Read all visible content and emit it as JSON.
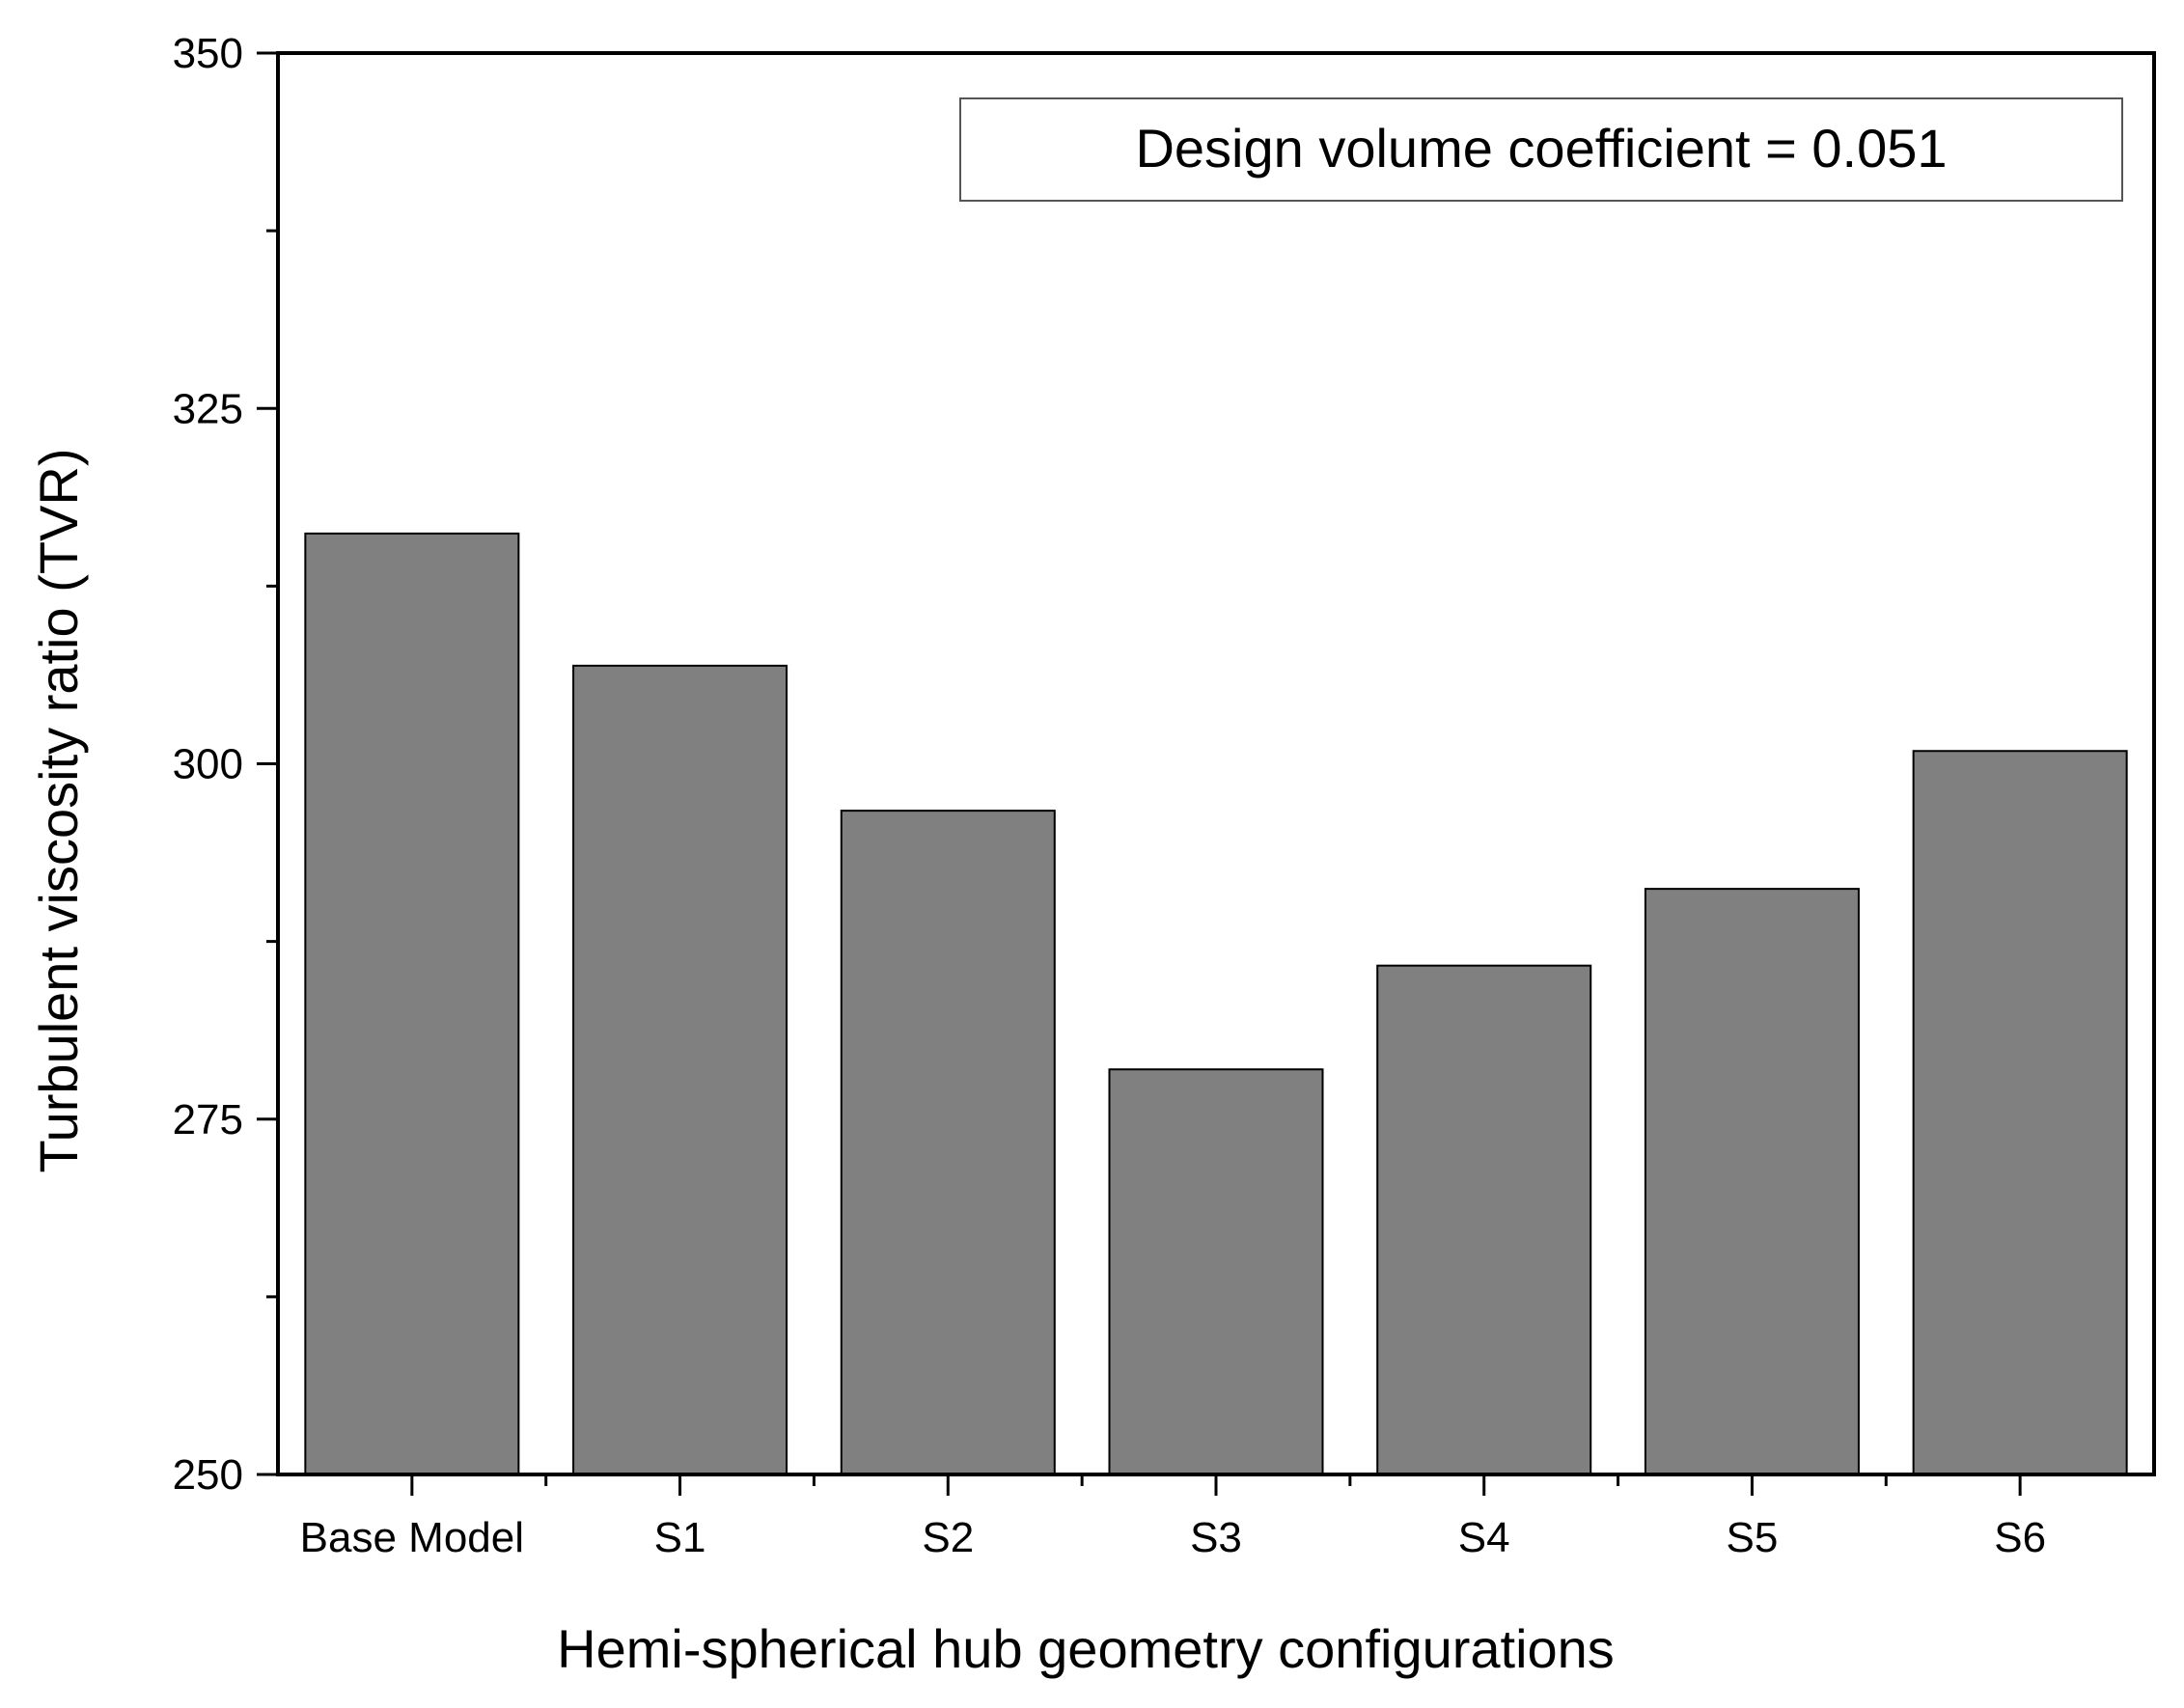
{
  "chart_data": {
    "type": "bar",
    "categories": [
      "Base Model",
      "S1",
      "S2",
      "S3",
      "S4",
      "S5",
      "S6"
    ],
    "values": [
      316.2,
      306.9,
      296.7,
      278.5,
      285.8,
      291.2,
      300.9
    ],
    "xlabel": "Hemi-spherical hub geometry configurations",
    "ylabel": "Turbulent viscosity ratio (TVR)",
    "ylim": [
      250,
      350
    ],
    "yticks": [
      250,
      275,
      300,
      325,
      350
    ],
    "ytick_labels": [
      "250",
      "275",
      "300",
      "325",
      "350"
    ],
    "annotation": "Design volume coefficient = 0.051",
    "grid": false,
    "bar_color": "#808080",
    "edge_color": "#000000"
  }
}
